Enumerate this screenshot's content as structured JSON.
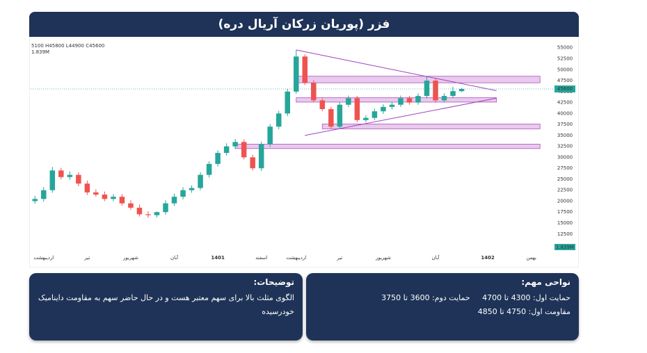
{
  "chart_data": {
    "type": "candlestick",
    "title": "فزر (پوریان زرکان آریال دره)",
    "header_text": "5100  H45800  L44900  C45600",
    "volume_label": "1.839M",
    "categories": [
      null,
      "اردیبهشت",
      null,
      null,
      null,
      null,
      "تیر",
      null,
      null,
      null,
      null,
      "شهریور",
      null,
      null,
      null,
      null,
      "آبان",
      null,
      null,
      null,
      null,
      "1401",
      null,
      null,
      null,
      null,
      "اسفند",
      null,
      null,
      null,
      "اردیبهشت",
      null,
      null,
      null,
      null,
      "تیر",
      null,
      null,
      null,
      null,
      "شهریور",
      null,
      null,
      null,
      null,
      null,
      "آبان",
      null,
      null,
      null,
      null,
      null,
      "1402",
      null,
      null,
      null,
      null,
      "بهمن",
      null,
      null
    ],
    "open": [
      20000,
      20500,
      22500,
      27000,
      25500,
      26000,
      24000,
      22000,
      21500,
      20500,
      21000,
      19500,
      18500,
      17000,
      16800,
      17500,
      19500,
      21000,
      22500,
      23000,
      26000,
      28500,
      31000,
      32500,
      33500,
      30000,
      27500,
      33000,
      37000,
      40000,
      45000,
      53000,
      47000,
      43000,
      41000,
      37000,
      42000,
      43500,
      38500,
      39000,
      40500,
      41500,
      42000,
      43500,
      42500,
      44000,
      47500,
      43000,
      44000,
      45100,
      null,
      null,
      null,
      null,
      null,
      null,
      null,
      null,
      null,
      null
    ],
    "high": [
      21200,
      23200,
      27800,
      27600,
      26800,
      26600,
      24700,
      22700,
      22200,
      21600,
      21600,
      20200,
      19200,
      17700,
      17600,
      20200,
      21700,
      23200,
      23600,
      26600,
      29100,
      31600,
      33200,
      34200,
      34100,
      30600,
      33600,
      37600,
      40600,
      45600,
      54500,
      53500,
      47600,
      43600,
      41500,
      42600,
      44100,
      44000,
      39600,
      41100,
      42100,
      42600,
      44100,
      44000,
      44600,
      48500,
      48000,
      44600,
      46100,
      45800,
      null,
      null,
      null,
      null,
      null,
      null,
      null,
      null,
      null,
      null
    ],
    "low": [
      19400,
      19900,
      21900,
      25000,
      24900,
      23400,
      21400,
      21000,
      20000,
      20000,
      19000,
      18000,
      16500,
      16200,
      16300,
      16900,
      18900,
      20400,
      21900,
      22500,
      25400,
      27900,
      30400,
      31900,
      29500,
      27000,
      26900,
      32400,
      36400,
      39400,
      44500,
      46500,
      42500,
      40500,
      36500,
      36500,
      41500,
      38000,
      38000,
      38500,
      39900,
      40900,
      41500,
      42000,
      42000,
      43500,
      42500,
      42500,
      43500,
      44900,
      null,
      null,
      null,
      null,
      null,
      null,
      null,
      null,
      null,
      null
    ],
    "close": [
      20500,
      22500,
      27000,
      25500,
      26000,
      24000,
      22000,
      21500,
      20500,
      21000,
      19500,
      18500,
      17000,
      16800,
      17500,
      19500,
      21000,
      22500,
      23000,
      26000,
      28500,
      31000,
      32500,
      33500,
      30000,
      27500,
      33000,
      37000,
      40000,
      45000,
      53000,
      47000,
      43000,
      41000,
      37000,
      42000,
      43500,
      38500,
      39000,
      40500,
      41500,
      42000,
      43500,
      42500,
      44000,
      47500,
      43000,
      44000,
      45100,
      45600,
      null,
      null,
      null,
      null,
      null,
      null,
      null,
      null,
      null,
      null
    ],
    "up_color": "#26a69a",
    "down_color": "#ef5350",
    "last_price": 45600,
    "last_price_color": "#26a69a",
    "zones": [
      {
        "from": 47000,
        "to": 48500,
        "start": 30,
        "end": 58
      },
      {
        "from": 42600,
        "to": 43600,
        "start": 30,
        "end": 53
      },
      {
        "from": 36500,
        "to": 37600,
        "start": 33,
        "end": 58
      },
      {
        "from": 32000,
        "to": 33000,
        "start": 23,
        "end": 58
      }
    ],
    "zone_color": "#b04fc0",
    "trendlines": [
      {
        "start": 30,
        "y1": 54500,
        "end": 53,
        "y2": 45200
      },
      {
        "start": 31,
        "y1": 35000,
        "end": 53,
        "y2": 43500
      }
    ],
    "ylim": [
      8500,
      56700
    ],
    "yticks": [
      12500,
      15000,
      17500,
      20000,
      22500,
      25000,
      27500,
      30000,
      32500,
      35000,
      37500,
      40000,
      42500,
      45000,
      47500,
      50000,
      52500,
      55000
    ],
    "grid": false
  },
  "notes": {
    "title": "توضیحات:",
    "text": "الگوی مثلث بالا برای سهم معتبر هست و در حال حاضر سهم به مقاومت داینامیک خودرسیده"
  },
  "levels": {
    "title": "نواحی مهم:",
    "items": [
      "حمایت اول: 4300 تا 4700",
      "حمایت دوم: 3600 تا 3750",
      "مقاومت اول: 4750 تا 4850"
    ]
  }
}
